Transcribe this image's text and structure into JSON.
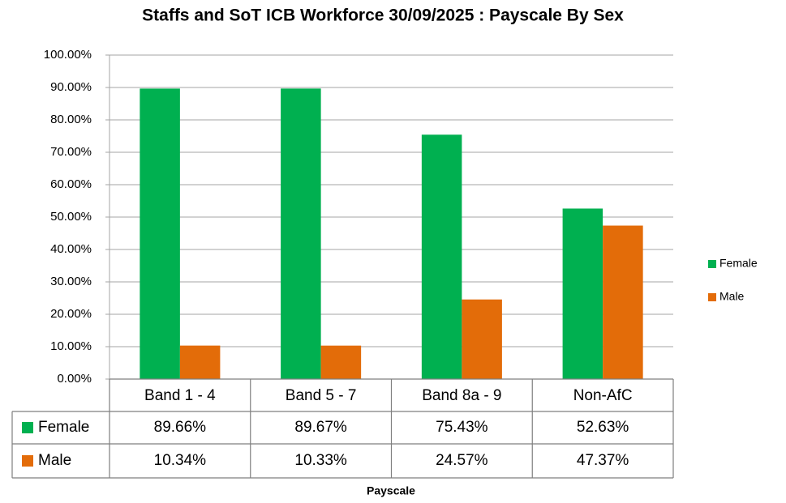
{
  "chart_data": {
    "type": "bar",
    "title": "Staffs and SoT ICB Workforce 30/09/2025 : Payscale By Sex",
    "x_label": "Payscale",
    "categories": [
      "Band 1 - 4",
      "Band 5 - 7",
      "Band 8a - 9",
      "Non-AfC"
    ],
    "series": [
      {
        "name": "Female",
        "color": "#00b050",
        "values": [
          89.66,
          89.67,
          75.43,
          52.63
        ],
        "value_labels": [
          "89.66%",
          "89.67%",
          "75.43%",
          "52.63%"
        ]
      },
      {
        "name": "Male",
        "color": "#e36c09",
        "values": [
          10.34,
          10.33,
          24.57,
          47.37
        ],
        "value_labels": [
          "10.34%",
          "10.33%",
          "24.57%",
          "47.37%"
        ]
      }
    ],
    "ylim": [
      0,
      100
    ],
    "yticks": [
      {
        "value": 0,
        "label": "0.00%"
      },
      {
        "value": 10,
        "label": "10.00%"
      },
      {
        "value": 20,
        "label": "20.00%"
      },
      {
        "value": 30,
        "label": "30.00%"
      },
      {
        "value": 40,
        "label": "40.00%"
      },
      {
        "value": 50,
        "label": "50.00%"
      },
      {
        "value": 60,
        "label": "60.00%"
      },
      {
        "value": 70,
        "label": "70.00%"
      },
      {
        "value": 80,
        "label": "80.00%"
      },
      {
        "value": 90,
        "label": "90.00%"
      },
      {
        "value": 100,
        "label": "100.00%"
      }
    ],
    "grid": true,
    "legend": "right"
  }
}
